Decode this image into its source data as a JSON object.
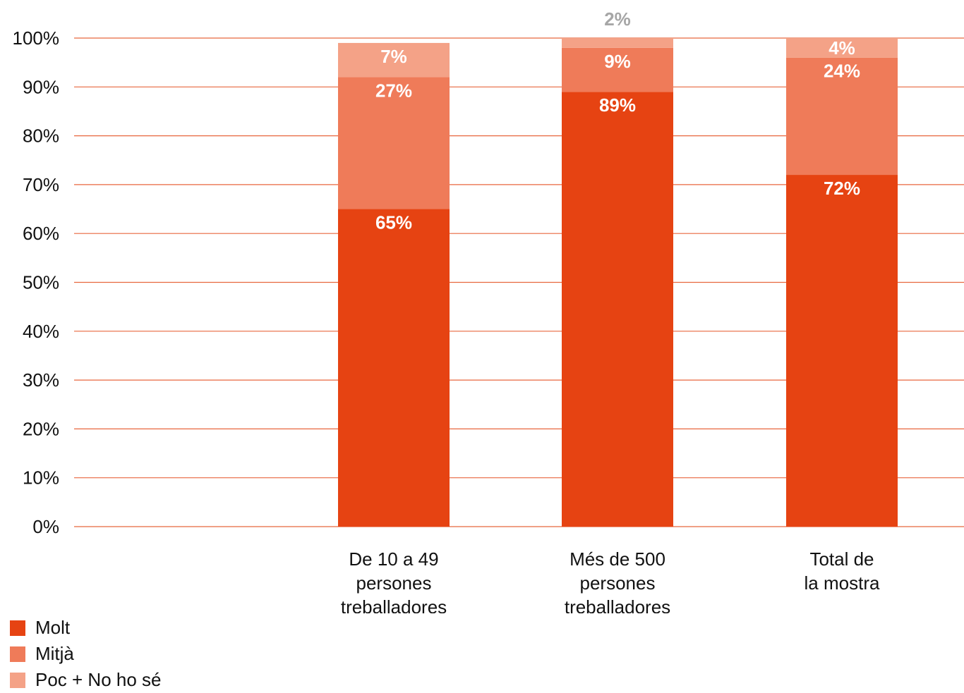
{
  "chart_data": {
    "type": "bar",
    "stacked": true,
    "categories": [
      "De 10 a 49 persones treballadores",
      "Més de 500 persones treballadores",
      "Total de la mostra"
    ],
    "category_lines": [
      [
        "De 10 a 49",
        "persones",
        "treballadores"
      ],
      [
        "Més de 500",
        "persones",
        "treballadores"
      ],
      [
        "Total de",
        "la mostra"
      ]
    ],
    "series": [
      {
        "name": "Molt",
        "values": [
          65,
          89,
          72
        ],
        "color": "#e64312",
        "labels": [
          "65%",
          "89%",
          "72%"
        ]
      },
      {
        "name": "Mitjà",
        "values": [
          27,
          9,
          24
        ],
        "color": "#ef7b59",
        "labels": [
          "27%",
          "9%",
          "24%"
        ]
      },
      {
        "name": "Poc + No ho sé",
        "values": [
          7,
          2,
          4
        ],
        "color": "#f4a287",
        "labels": [
          "7%",
          "2%",
          "4%"
        ]
      }
    ],
    "y_ticks": [
      "0%",
      "10%",
      "20%",
      "30%",
      "40%",
      "50%",
      "60%",
      "70%",
      "80%",
      "90%",
      "100%"
    ],
    "ylim": [
      0,
      100
    ],
    "grid": true,
    "grid_color": "#e8673f",
    "legend_position": "bottom-left",
    "label_color": "#ffffff",
    "outside_label_color": "#a6a6a6"
  }
}
